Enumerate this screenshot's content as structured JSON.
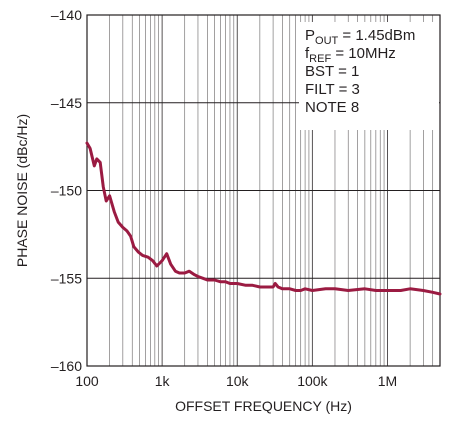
{
  "chart_data": {
    "type": "line",
    "xlabel": "OFFSET FREQUENCY (Hz)",
    "ylabel": "PHASE NOISE (dBc/Hz)",
    "xscale": "log",
    "xlim": [
      100,
      5000000
    ],
    "ylim": [
      -160,
      -140
    ],
    "x_ticks": [
      100,
      1000,
      10000,
      100000,
      1000000
    ],
    "x_tick_labels": [
      "100",
      "1k",
      "10k",
      "100k",
      "1M"
    ],
    "y_ticks": [
      -160,
      -155,
      -150,
      -145,
      -140
    ],
    "y_tick_labels": [
      "–160",
      "–155",
      "–150",
      "–145",
      "–140"
    ],
    "grid": true,
    "annotation": {
      "lines": [
        {
          "main": "P",
          "sub": "OUT",
          "rest": " = 1.45dBm"
        },
        {
          "main": "f",
          "sub": "REF",
          "rest": " = 10MHz"
        },
        {
          "main": "BST = 1",
          "sub": "",
          "rest": ""
        },
        {
          "main": "FILT = 3",
          "sub": "",
          "rest": ""
        },
        {
          "main": "NOTE 8",
          "sub": "",
          "rest": ""
        }
      ]
    },
    "series_color": "#9b1b42",
    "series": [
      {
        "x": [
          100,
          110,
          125,
          135,
          150,
          165,
          180,
          200,
          230,
          260,
          300,
          340,
          380,
          420,
          480,
          550,
          650,
          750,
          850,
          1000,
          1150,
          1300,
          1500,
          1700,
          2000,
          2300,
          2700,
          3000,
          3500,
          4000,
          5000,
          6000,
          7000,
          8000,
          10000,
          13000,
          16000,
          20000,
          25000,
          30000,
          32000,
          35000,
          40000,
          50000,
          60000,
          70000,
          80000,
          100000,
          150000,
          200000,
          300000,
          500000,
          700000,
          1000000,
          1500000,
          2000000,
          3000000,
          4000000,
          5000000
        ],
        "y": [
          -147.3,
          -147.6,
          -148.6,
          -148.2,
          -148.4,
          -149.8,
          -150.6,
          -150.3,
          -151.2,
          -151.8,
          -152.1,
          -152.3,
          -152.6,
          -153.2,
          -153.5,
          -153.7,
          -153.8,
          -154.0,
          -154.3,
          -154.0,
          -153.6,
          -154.2,
          -154.6,
          -154.7,
          -154.7,
          -154.6,
          -154.8,
          -154.9,
          -155.0,
          -155.1,
          -155.1,
          -155.2,
          -155.2,
          -155.3,
          -155.3,
          -155.4,
          -155.4,
          -155.5,
          -155.5,
          -155.5,
          -155.3,
          -155.5,
          -155.6,
          -155.6,
          -155.7,
          -155.7,
          -155.6,
          -155.7,
          -155.6,
          -155.6,
          -155.7,
          -155.6,
          -155.7,
          -155.7,
          -155.7,
          -155.6,
          -155.7,
          -155.8,
          -155.9
        ]
      }
    ]
  }
}
